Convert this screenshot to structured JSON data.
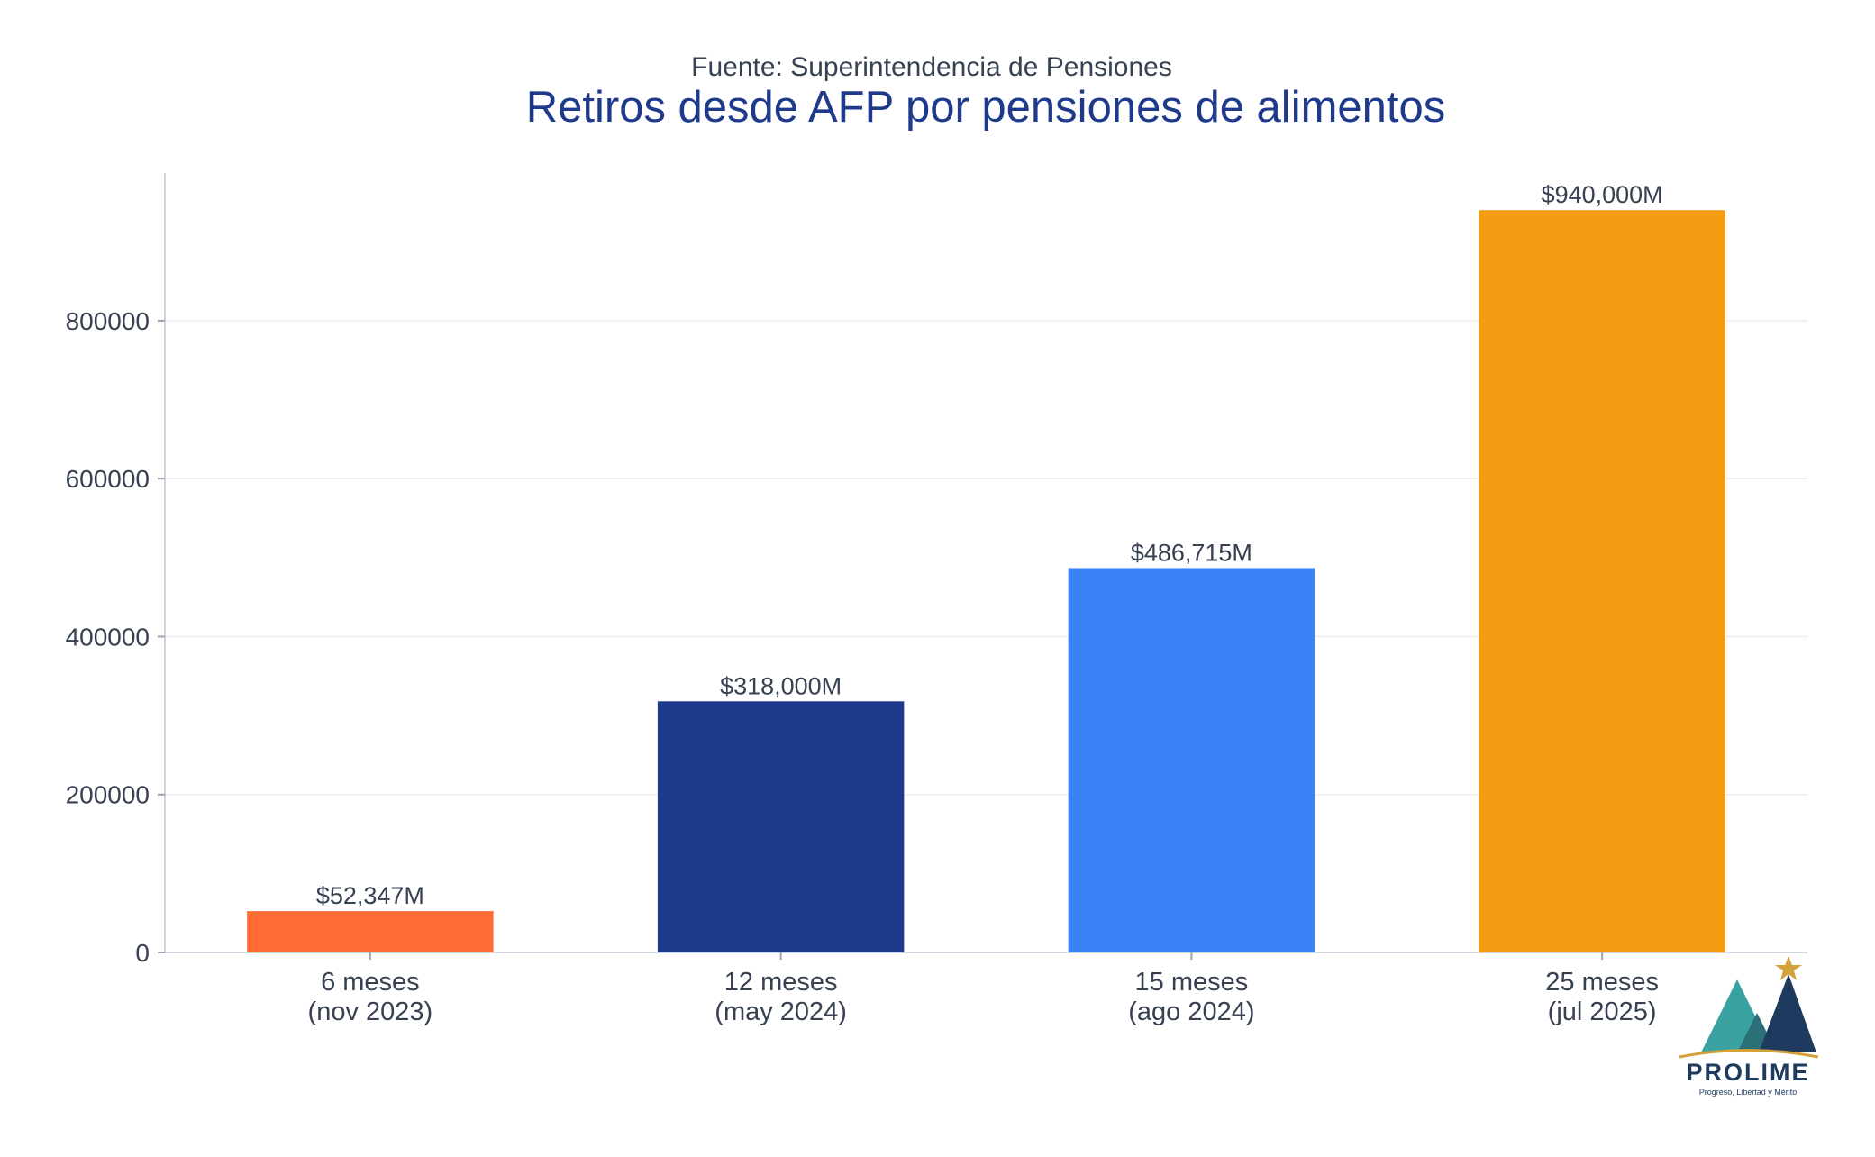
{
  "chart_data": {
    "type": "bar",
    "subtitle": "Fuente: Superintendencia de Pensiones",
    "title": "Retiros desde AFP por pensiones de alimentos",
    "categories": [
      [
        "6 meses",
        "(nov 2023)"
      ],
      [
        "12 meses",
        "(may 2024)"
      ],
      [
        "15 meses",
        "(ago 2024)"
      ],
      [
        "25 meses",
        "(jul 2025)"
      ]
    ],
    "values": [
      52347,
      318000,
      486715,
      940000
    ],
    "data_labels": [
      "$52,347M",
      "$318,000M",
      "$486,715M",
      "$940,000M"
    ],
    "colors": [
      "#ff6b35",
      "#1e3a8a",
      "#3b82f6",
      "#f39c12"
    ],
    "yticks": [
      0,
      200000,
      400000,
      600000,
      800000
    ],
    "ytick_labels": [
      "0",
      "200000",
      "400000",
      "600000",
      "800000"
    ],
    "ylim": [
      0,
      987000
    ],
    "grid": "horizontal",
    "legend": "none"
  },
  "logo": {
    "name": "PROLIME",
    "tagline": "Progreso, Libertad y Mérito",
    "colors": {
      "teal": "#3aa3a1",
      "navy": "#1e3a5f",
      "gold": "#d4a23a"
    }
  }
}
